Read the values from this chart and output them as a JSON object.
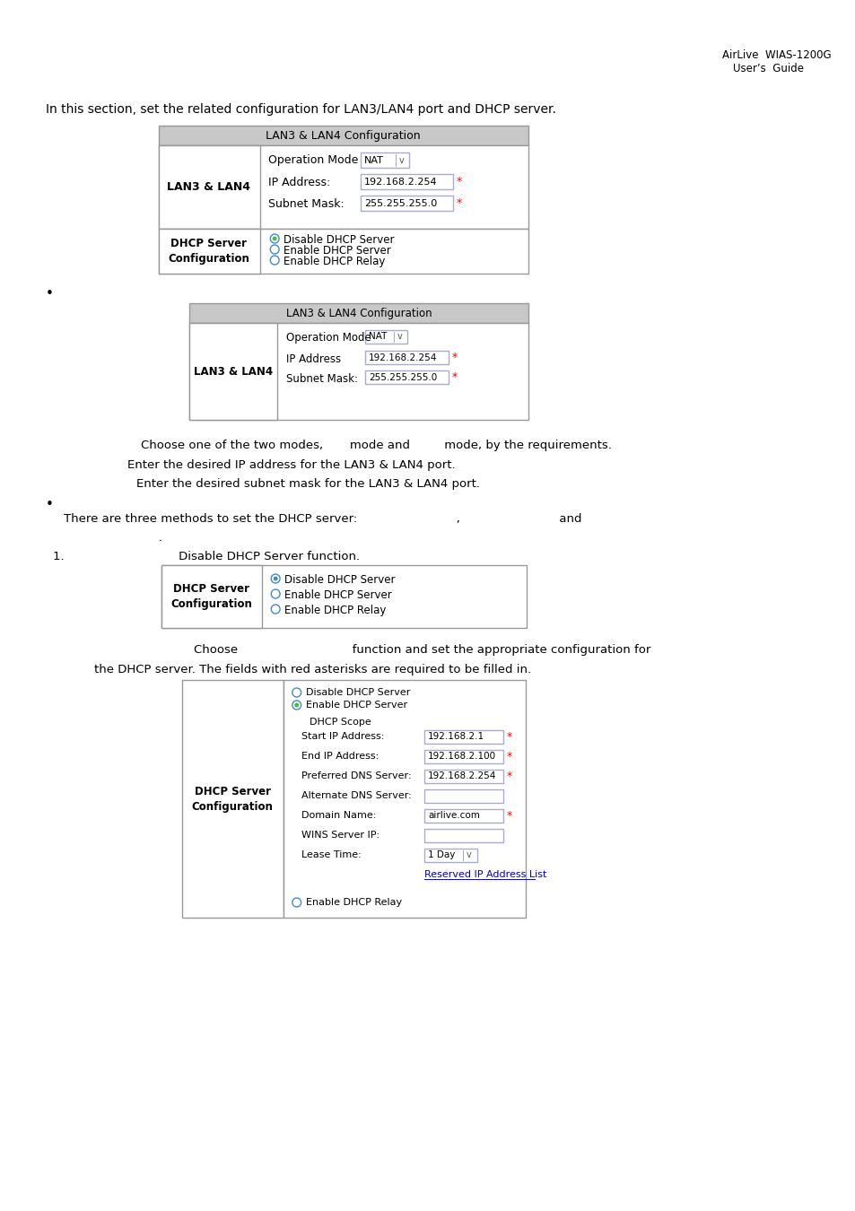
{
  "header_line1": "AirLive  WIAS-1200G",
  "header_line2": "User’s  Guide",
  "intro_text": "In this section, set the related configuration for LAN3/LAN4 port and DHCP server.",
  "table1_title": "LAN3 & LAN4 Configuration",
  "table2_title": "LAN3 & LAN4 Configuration",
  "text_lines": [
    "Choose one of the two modes,       mode and         mode, by the requirements.",
    "Enter the desired IP address for the LAN3 & LAN4 port.",
    "Enter the desired subnet mask for the LAN3 & LAN4 port."
  ],
  "dhcp_text1": "There are three methods to set the DHCP server:                          ,                          and",
  "dhcp_text2": "               .",
  "item1_text": "1.                              Disable DHCP Server function.",
  "choose_text": "Choose                              function and set the appropriate configuration for",
  "dhcp_server_text": "the DHCP server. The fields with red asterisks are required to be filled in.",
  "bg_color": "#ffffff",
  "table_header_bg": "#c8c8c8",
  "table_border": "#999999",
  "input_border": "#aaaacc",
  "text_color": "#000000"
}
